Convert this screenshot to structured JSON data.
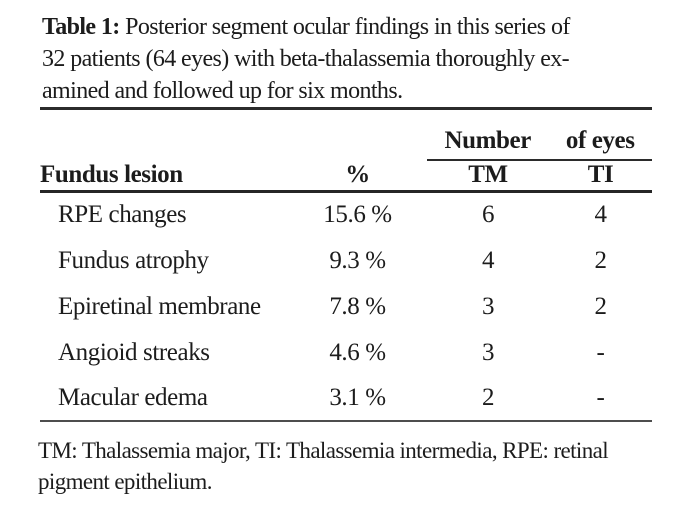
{
  "caption": {
    "label": "Table 1:",
    "line1_rest": "Posterior segment ocular findings in this series of",
    "line2": "32 patients (64 eyes) with beta-thalassemia thoroughly ex-",
    "line3": "amined and followed up for six months."
  },
  "table": {
    "group_header": {
      "part1": "Number",
      "part2": "of eyes"
    },
    "columns": {
      "lesion": "Fundus lesion",
      "percent": "%",
      "tm": "TM",
      "ti": "TI"
    },
    "rows": [
      {
        "lesion": "RPE changes",
        "percent": "15.6 %",
        "tm": "6",
        "ti": "4"
      },
      {
        "lesion": "Fundus atrophy",
        "percent": "9.3 %",
        "tm": "4",
        "ti": "2"
      },
      {
        "lesion": "Epiretinal membrane",
        "percent": "7.8 %",
        "tm": "3",
        "ti": "2"
      },
      {
        "lesion": "Angioid streaks",
        "percent": "4.6 %",
        "tm": "3",
        "ti": "-"
      },
      {
        "lesion": "Macular edema",
        "percent": "3.1 %",
        "tm": "2",
        "ti": "-"
      }
    ]
  },
  "footnote": {
    "line1": "TM: Thalassemia major, TI: Thalassemia intermedia, RPE: retinal",
    "line2": "pigment epithelium."
  },
  "colors": {
    "text": "#1c1c1c",
    "rule_dark": "#2b2b2b",
    "rule_gray": "#4d4d4d",
    "background": "#ffffff"
  }
}
